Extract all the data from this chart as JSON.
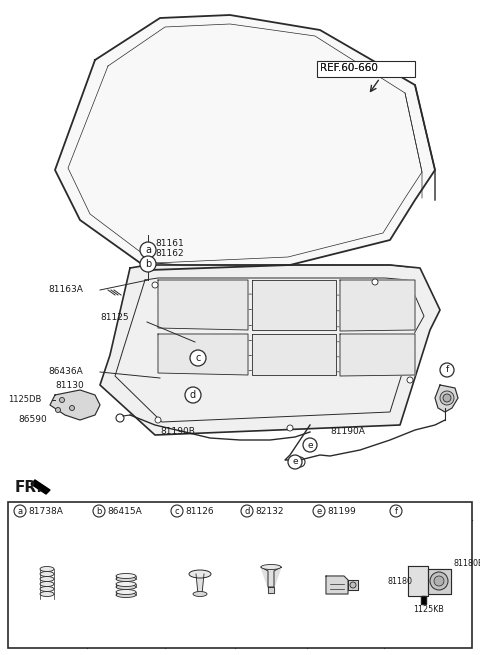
{
  "bg_color": "#ffffff",
  "line_color": "#2a2a2a",
  "text_color": "#1a1a1a",
  "ref_label": "REF.60-660",
  "fr_label": "FR.",
  "part_labels": [
    {
      "id": "a",
      "num": "81738A"
    },
    {
      "id": "b",
      "num": "86415A"
    },
    {
      "id": "c",
      "num": "81126"
    },
    {
      "id": "d",
      "num": "82132"
    },
    {
      "id": "e",
      "num": "81199"
    },
    {
      "id": "f",
      "num": ""
    }
  ]
}
